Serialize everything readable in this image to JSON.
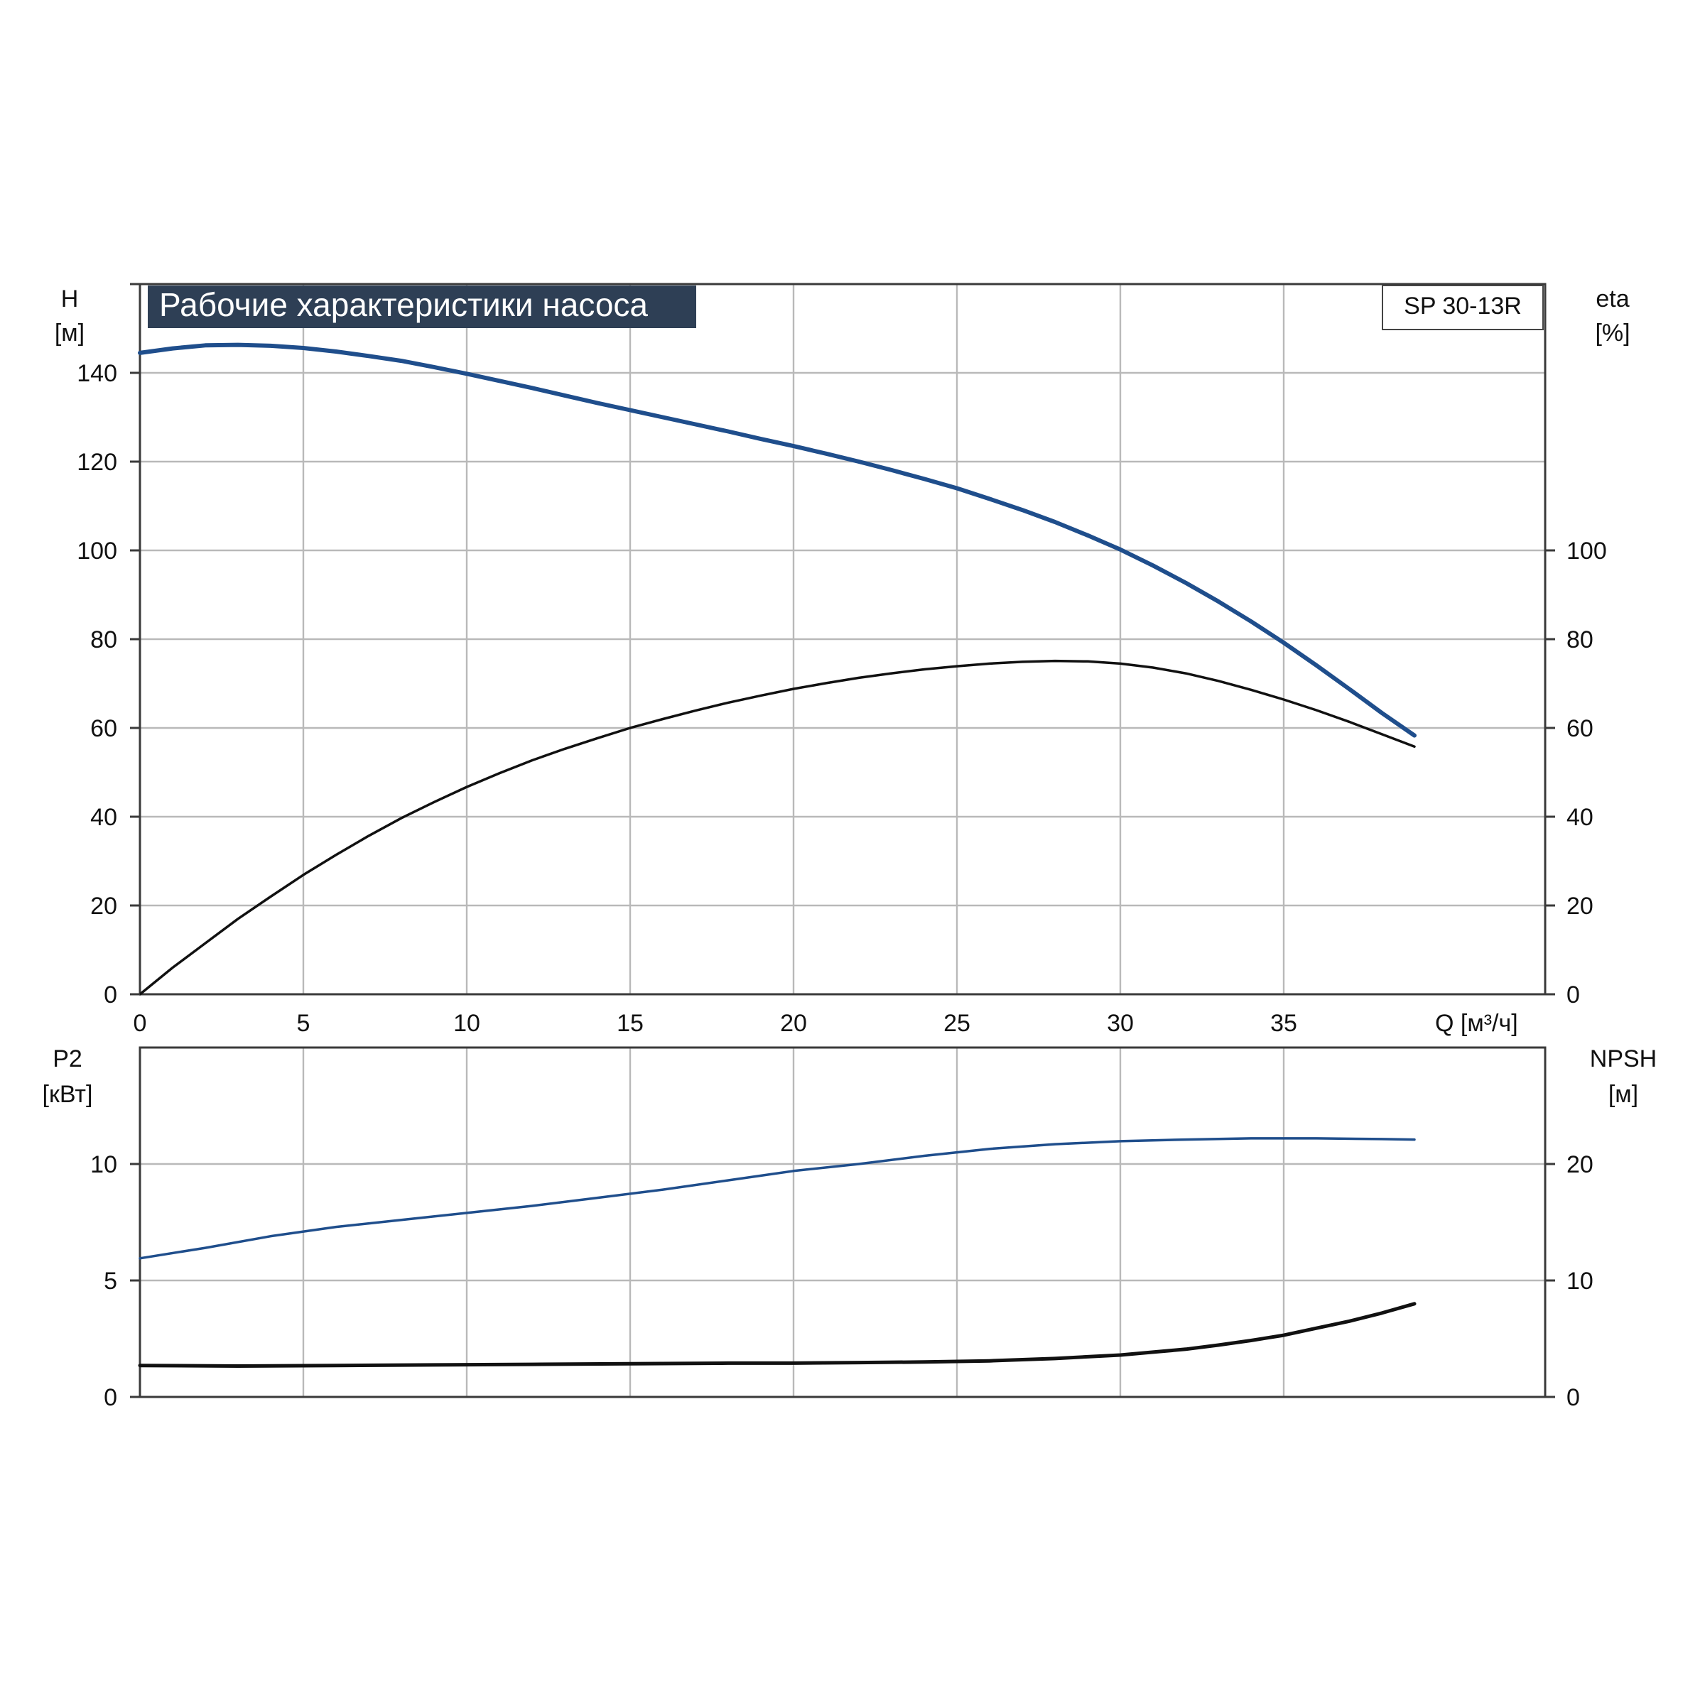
{
  "title": "Рабочие характеристики насоса",
  "model": "SP 30-13R",
  "colors": {
    "blue": "#1f4e8c",
    "black": "#111111",
    "title_bg": "#2e3f55",
    "title_text": "#ffffff",
    "grid": "#b9b9b9"
  },
  "chart_data": [
    {
      "type": "line",
      "panel": "top",
      "title": "Рабочие характеристики насоса",
      "xlabel": "Q [м³/ч]",
      "xlim": [
        0,
        43
      ],
      "x_ticks": [
        0,
        5,
        10,
        15,
        20,
        25,
        30,
        35
      ],
      "y_left_label_1": "H",
      "y_left_label_2": "[м]",
      "y_left_lim": [
        0,
        160
      ],
      "y_left_ticks": [
        0,
        20,
        40,
        60,
        80,
        100,
        120,
        140
      ],
      "y_right_label_1": "eta",
      "y_right_label_2": "[%]",
      "y_right_lim": [
        0,
        160
      ],
      "y_right_ticks": [
        0,
        20,
        40,
        60,
        80,
        100
      ],
      "grid": true,
      "series": [
        {
          "axis": "left",
          "color": "blue",
          "width": 6,
          "x": [
            0,
            1,
            2,
            3,
            4,
            5,
            6,
            7,
            8,
            9,
            10,
            11,
            12,
            13,
            14,
            15,
            16,
            17,
            18,
            19,
            20,
            21,
            22,
            23,
            24,
            25,
            26,
            27,
            28,
            29,
            30,
            31,
            32,
            33,
            34,
            35,
            36,
            37,
            38,
            39
          ],
          "values": [
            144.5,
            145.5,
            146.2,
            146.3,
            146.1,
            145.6,
            144.8,
            143.8,
            142.7,
            141.3,
            139.8,
            138.2,
            136.6,
            134.9,
            133.2,
            131.6,
            130.0,
            128.4,
            126.8,
            125.1,
            123.5,
            121.8,
            120.0,
            118.1,
            116.1,
            114.0,
            111.6,
            109.1,
            106.4,
            103.4,
            100.2,
            96.6,
            92.7,
            88.5,
            84.0,
            79.2,
            74.1,
            68.8,
            63.4,
            58.3
          ]
        },
        {
          "axis": "right",
          "color": "black",
          "width": 3.5,
          "x": [
            0,
            1,
            2,
            3,
            4,
            5,
            6,
            7,
            8,
            9,
            10,
            11,
            12,
            13,
            14,
            15,
            16,
            17,
            18,
            19,
            20,
            21,
            22,
            23,
            24,
            25,
            26,
            27,
            28,
            29,
            30,
            31,
            32,
            33,
            34,
            35,
            36,
            37,
            38,
            39
          ],
          "values": [
            0,
            6.0,
            11.5,
            17.0,
            22.0,
            26.9,
            31.4,
            35.7,
            39.7,
            43.3,
            46.7,
            49.8,
            52.7,
            55.3,
            57.7,
            60.0,
            62.0,
            63.9,
            65.7,
            67.3,
            68.8,
            70.1,
            71.3,
            72.3,
            73.2,
            73.9,
            74.5,
            74.9,
            75.1,
            75.0,
            74.5,
            73.6,
            72.3,
            70.6,
            68.6,
            66.4,
            64.0,
            61.4,
            58.6,
            55.8
          ]
        }
      ]
    },
    {
      "type": "line",
      "panel": "bottom",
      "xlim": [
        0,
        43
      ],
      "x_ticks": [
        0,
        5,
        10,
        15,
        20,
        25,
        30,
        35
      ],
      "y_left_label_1": "P2",
      "y_left_label_2": "[кВт]",
      "y_left_lim": [
        0,
        15
      ],
      "y_left_ticks": [
        0,
        5,
        10
      ],
      "y_right_label_1": "NPSH",
      "y_right_label_2": "[м]",
      "y_right_lim": [
        0,
        30
      ],
      "y_right_ticks": [
        0,
        10,
        20
      ],
      "grid": true,
      "series": [
        {
          "axis": "left",
          "color": "blue",
          "width": 3.5,
          "x": [
            0,
            2,
            4,
            6,
            8,
            10,
            12,
            14,
            16,
            18,
            20,
            22,
            24,
            26,
            28,
            30,
            32,
            34,
            36,
            38,
            39
          ],
          "values": [
            5.95,
            6.4,
            6.9,
            7.3,
            7.6,
            7.9,
            8.2,
            8.55,
            8.9,
            9.3,
            9.7,
            10.0,
            10.35,
            10.65,
            10.85,
            10.98,
            11.05,
            11.1,
            11.1,
            11.07,
            11.05
          ]
        },
        {
          "axis": "right",
          "color": "black",
          "width": 5,
          "x": [
            0,
            3,
            6,
            9,
            12,
            15,
            18,
            20,
            22,
            24,
            26,
            27,
            28,
            29,
            30,
            31,
            32,
            33,
            34,
            35,
            36,
            37,
            38,
            39
          ],
          "values": [
            2.7,
            2.65,
            2.7,
            2.75,
            2.8,
            2.85,
            2.9,
            2.9,
            2.95,
            3.0,
            3.1,
            3.2,
            3.3,
            3.45,
            3.6,
            3.85,
            4.1,
            4.45,
            4.85,
            5.3,
            5.9,
            6.5,
            7.2,
            8.0
          ]
        }
      ]
    }
  ]
}
